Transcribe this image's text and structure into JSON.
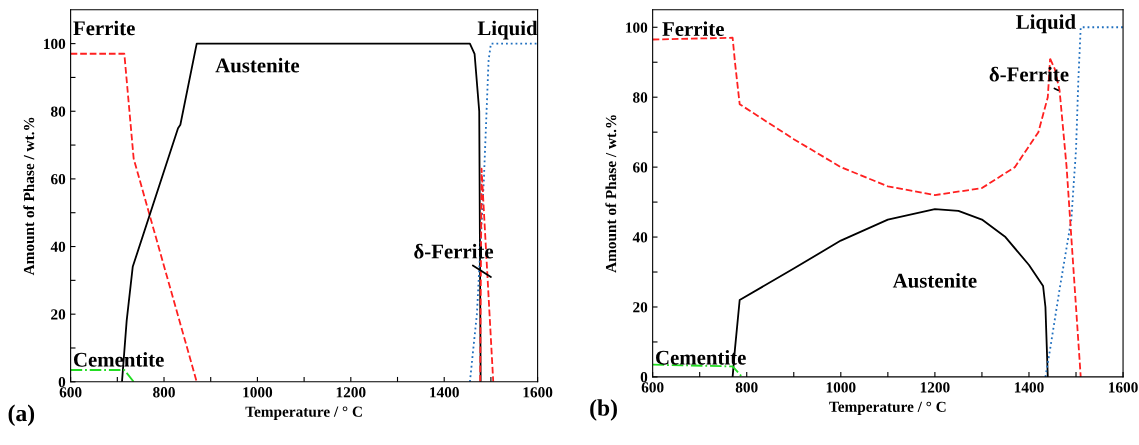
{
  "chart_data": [
    {
      "type": "line",
      "xlabel": "Temperature / ° C",
      "ylabel": "Amount of Phase / wt.%",
      "annotations": [
        "(a)"
      ],
      "xlim": [
        600,
        1600
      ],
      "ylim": [
        0,
        110
      ],
      "xticks": [
        600,
        {
          "value": 700,
          "label": null
        },
        800,
        {
          "value": 900,
          "label": null
        },
        1000,
        {
          "value": 1100,
          "label": null
        },
        1200,
        {
          "value": 1300,
          "label": null
        },
        1400,
        {
          "value": 1500,
          "label": null
        },
        1600
      ],
      "yticks": [
        0,
        {
          "value": 10,
          "label": null
        },
        20,
        {
          "value": 30,
          "label": null
        },
        40,
        {
          "value": 50,
          "label": null
        },
        60,
        {
          "value": 70,
          "label": null
        },
        80,
        {
          "value": 90,
          "label": null
        },
        100
      ],
      "series": [
        {
          "name": "Ferrite",
          "color": "#ff2020",
          "line_style": "dashed",
          "x": [
            600,
            715,
            735,
            870
          ],
          "values": [
            97,
            97,
            66,
            0
          ]
        },
        {
          "name": "Austenite",
          "color": "#000000",
          "line_style": "solid",
          "x": [
            710,
            720,
            733,
            830,
            835,
            870,
            1455,
            1465,
            1475,
            1478
          ],
          "values": [
            0,
            18,
            34,
            75,
            76,
            100,
            100,
            97,
            80,
            0
          ]
        },
        {
          "name": "Liquid",
          "color": "#1f6fbf",
          "line_style": "dotted",
          "x": [
            1455,
            1470,
            1485,
            1495,
            1500,
            1600
          ],
          "values": [
            0,
            20,
            60,
            95,
            100,
            100
          ]
        },
        {
          "name": "δ-Ferrite",
          "color": "#ff2020",
          "line_style": "dashed",
          "x": [
            1477,
            1480,
            1505
          ],
          "values": [
            0,
            63,
            0
          ]
        },
        {
          "name": "Cementite",
          "color": "#22dd22",
          "line_style": "dashdot",
          "x": [
            600,
            715,
            735
          ],
          "values": [
            3.5,
            3.5,
            0
          ]
        }
      ]
    },
    {
      "type": "line",
      "xlabel": "Temperature / ° C",
      "ylabel": "Amount of Phase / wt.%",
      "annotations": [
        "(b)"
      ],
      "xlim": [
        600,
        1600
      ],
      "ylim": [
        0,
        105
      ],
      "xticks": [
        600,
        {
          "value": 700,
          "label": null
        },
        800,
        {
          "value": 900,
          "label": null
        },
        1000,
        {
          "value": 1100,
          "label": null
        },
        1200,
        {
          "value": 1300,
          "label": null
        },
        1400,
        {
          "value": 1500,
          "label": null
        },
        1600
      ],
      "yticks": [
        0,
        {
          "value": 10,
          "label": null
        },
        20,
        {
          "value": 30,
          "label": null
        },
        40,
        {
          "value": 50,
          "label": null
        },
        60,
        {
          "value": 70,
          "label": null
        },
        80,
        {
          "value": 90,
          "label": null
        },
        100
      ],
      "series": [
        {
          "name": "Ferrite",
          "color": "#ff2020",
          "line_style": "dashed",
          "x": [
            600,
            770,
            775,
            785,
            900,
            1000,
            1100,
            1200,
            1300,
            1370,
            1420,
            1440,
            1445
          ],
          "values": [
            96.5,
            97,
            90,
            78,
            68,
            60,
            54.5,
            52,
            54,
            60,
            70,
            80,
            91
          ]
        },
        {
          "name": "Austenite",
          "color": "#000000",
          "line_style": "solid",
          "x": [
            770,
            775,
            785,
            900,
            1000,
            1100,
            1200,
            1250,
            1300,
            1350,
            1400,
            1430,
            1435,
            1440
          ],
          "values": [
            0,
            8,
            22,
            31,
            39,
            45,
            48,
            47.5,
            45,
            40,
            32,
            26,
            20,
            0
          ]
        },
        {
          "name": "Liquid",
          "color": "#1f6fbf",
          "line_style": "dotted",
          "x": [
            1435,
            1445,
            1465,
            1490,
            1500,
            1505,
            1510,
            1600
          ],
          "values": [
            0,
            8,
            25,
            45,
            65,
            85,
            100,
            100
          ]
        },
        {
          "name": "δ-Ferrite",
          "color": "#ff2020",
          "line_style": "dashed",
          "x": [
            1445,
            1455,
            1465,
            1480,
            1500,
            1510
          ],
          "values": [
            91,
            88,
            82,
            60,
            20,
            0
          ]
        },
        {
          "name": "Cementite",
          "color": "#22dd22",
          "line_style": "dashdot",
          "x": [
            600,
            770,
            790
          ],
          "values": [
            3.5,
            3,
            0
          ]
        }
      ]
    }
  ]
}
